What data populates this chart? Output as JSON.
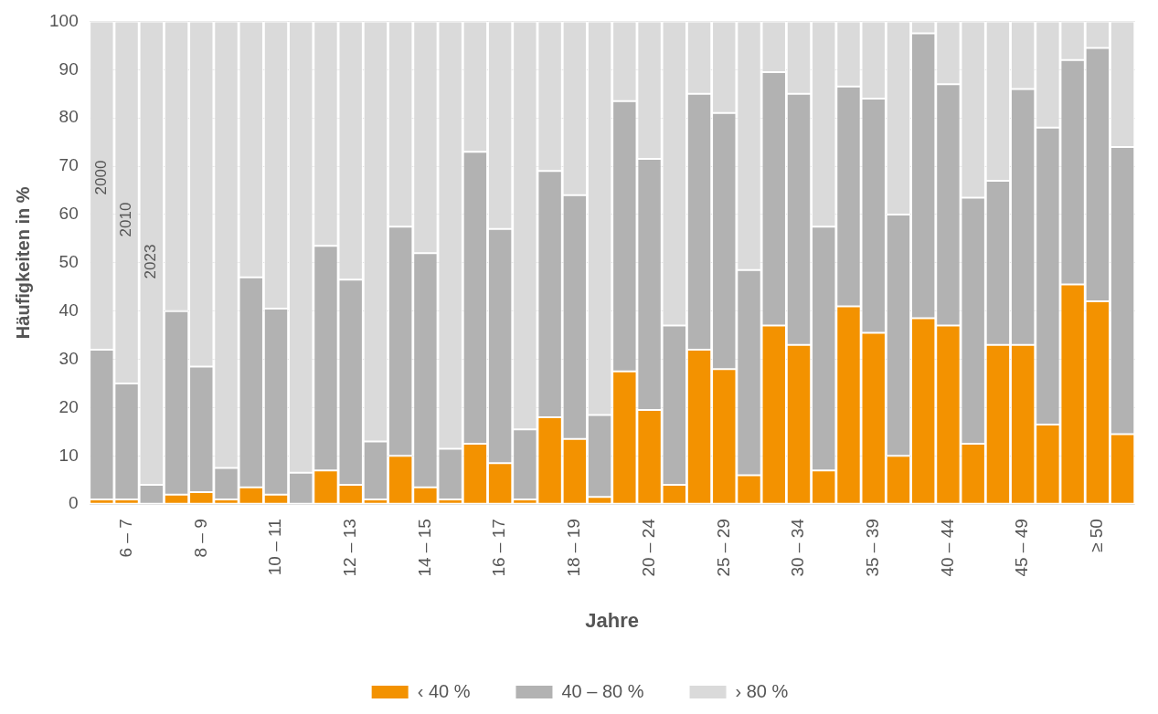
{
  "chart_data": {
    "type": "bar",
    "stacked": true,
    "xlabel": "Jahre",
    "ylabel": "Häufigkeiten in %",
    "categories": [
      null,
      "6 – 7",
      null,
      null,
      "8 – 9",
      null,
      null,
      "10 – 11",
      null,
      null,
      "12 – 13",
      null,
      null,
      "14 – 15",
      null,
      null,
      "16 – 17",
      null,
      null,
      "18 – 19",
      null,
      null,
      "20 – 24",
      null,
      null,
      "25 – 29",
      null,
      null,
      "30 – 34",
      null,
      null,
      "35 – 39",
      null,
      null,
      "40 – 44",
      null,
      null,
      "45 – 49",
      null,
      null,
      "≥ 50",
      null
    ],
    "series": [
      {
        "name": "‹ 40 %",
        "color": "#f39200",
        "values": [
          1,
          1,
          0,
          2,
          2.5,
          1,
          3.5,
          2,
          0,
          7,
          4,
          1,
          10,
          3.5,
          1,
          12.5,
          8.5,
          1,
          18,
          13.5,
          1.5,
          27.5,
          19.5,
          4,
          32,
          28,
          6,
          37,
          33,
          7,
          41,
          35.5,
          10,
          38.5,
          37,
          12.5,
          33,
          33,
          16.5,
          45.5,
          42,
          14.5
        ]
      },
      {
        "name": "40 – 80 %",
        "color": "#b2b2b2",
        "values": [
          31,
          24,
          4,
          38,
          26,
          6.5,
          43.5,
          38.5,
          6.5,
          46.5,
          42.5,
          12,
          47.5,
          48.5,
          10.5,
          60.5,
          48.5,
          14.5,
          51,
          50.5,
          17,
          56,
          52,
          33,
          53,
          53,
          42.5,
          52.5,
          52,
          50.5,
          45.5,
          48.5,
          50,
          59,
          50,
          51,
          34,
          53,
          61.5,
          46.5,
          52.5,
          59.5
        ]
      },
      {
        "name": "› 80 %",
        "color": "#dadada",
        "values": [
          68,
          75,
          96,
          60,
          71.5,
          92.5,
          53,
          59.5,
          93.5,
          46.5,
          53.5,
          87,
          42.5,
          48,
          88.5,
          27,
          43,
          84.5,
          31,
          36,
          81.5,
          16.5,
          28.5,
          63,
          15,
          19,
          51.5,
          10.5,
          15,
          42.5,
          13.5,
          16,
          40,
          2.5,
          13,
          36.5,
          33,
          14,
          22,
          8,
          5.5,
          26
        ]
      }
    ],
    "annotations": [
      "2000",
      "2010",
      "2023"
    ],
    "ylim": [
      0,
      100
    ],
    "yticks": [
      0,
      10,
      20,
      30,
      40,
      50,
      60,
      70,
      80,
      90,
      100
    ],
    "grid": "y",
    "legend": "bottom"
  }
}
